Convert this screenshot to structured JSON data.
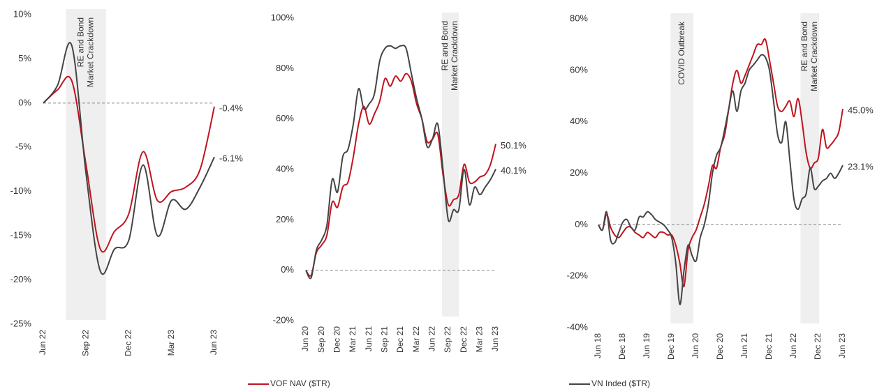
{
  "chart_data": [
    {
      "type": "line",
      "categories": [
        "Jun 22",
        null,
        null,
        "Sep 22",
        null,
        null,
        "Dec 22",
        null,
        null,
        "Mar 23",
        null,
        null,
        "Jun 23"
      ],
      "series": [
        {
          "name": "VOF NAV ($TR)",
          "color": "#c0141e",
          "values": [
            0,
            1.5,
            2.5,
            -7,
            -16.5,
            -14.5,
            -12.5,
            -5.5,
            -11,
            -10,
            -9.5,
            -7.5,
            -0.4
          ],
          "end_label": "-0.4%"
        },
        {
          "name": "VN Inded ($TR)",
          "color": "#444444",
          "values": [
            0,
            2,
            6.5,
            -8,
            -19,
            -16.5,
            -15.5,
            -7,
            -15,
            -11,
            -12,
            -9.5,
            -6.1
          ],
          "end_label": "-6.1%"
        }
      ],
      "ylim": [
        -25,
        10
      ],
      "yticks": [
        {
          "value": -25,
          "label": "-25%"
        },
        {
          "value": -20,
          "label": "-20%"
        },
        {
          "value": -15,
          "label": "-15%"
        },
        {
          "value": -10,
          "label": "-10%"
        },
        {
          "value": -5,
          "label": "-5%"
        },
        {
          "value": 0,
          "label": "0%"
        },
        {
          "value": 5,
          "label": "5%"
        },
        {
          "value": 10,
          "label": "10%"
        }
      ],
      "events": [
        {
          "label": [
            "RE and Bond",
            "Market Crackdown"
          ],
          "start": 1.6,
          "end": 4.4
        }
      ]
    },
    {
      "type": "line",
      "categories": [
        "Jun 20",
        null,
        null,
        "Sep 20",
        null,
        null,
        "Dec 20",
        null,
        null,
        "Mar 21",
        null,
        null,
        "Jun 21",
        null,
        null,
        "Sep 21",
        null,
        null,
        "Dec 21",
        null,
        null,
        "Mar 22",
        null,
        null,
        "Jun 22",
        null,
        null,
        "Sep 22",
        null,
        null,
        "Dec 22",
        null,
        null,
        "Mar 23",
        null,
        null,
        "Jun 23"
      ],
      "series": [
        {
          "name": "VOF NAV ($TR)",
          "color": "#c0141e",
          "values": [
            0,
            -2,
            7,
            10,
            14,
            27,
            25,
            33,
            35,
            45,
            58,
            65,
            58,
            62,
            67,
            76,
            73,
            77,
            75,
            78,
            75,
            66,
            60,
            51,
            52,
            54,
            38,
            26,
            28,
            30,
            42,
            35,
            35,
            37,
            38,
            42,
            50.1
          ],
          "end_label": "50.1%"
        },
        {
          "name": "VN Inded ($TR)",
          "color": "#444444",
          "values": [
            0,
            -3,
            8,
            12,
            18,
            36,
            31,
            45,
            48,
            58,
            72,
            64,
            66,
            70,
            83,
            88,
            89,
            88,
            89,
            88,
            78,
            68,
            60,
            49,
            52,
            58,
            40,
            20,
            24,
            24,
            40,
            26,
            33,
            30,
            33,
            36,
            40.1
          ],
          "end_label": "40.1%"
        }
      ],
      "ylim": [
        -20,
        100
      ],
      "yticks": [
        {
          "value": -20,
          "label": "-20%"
        },
        {
          "value": 0,
          "label": "0%"
        },
        {
          "value": 20,
          "label": "20%"
        },
        {
          "value": 40,
          "label": "40%"
        },
        {
          "value": 60,
          "label": "60%"
        },
        {
          "value": 80,
          "label": "80%"
        },
        {
          "value": 100,
          "label": "100%"
        }
      ],
      "events": [
        {
          "label": [
            "RE and Bond",
            "Market Crackdown"
          ],
          "start": 25.8,
          "end": 29
        }
      ]
    },
    {
      "type": "line",
      "categories": [
        "Jun 18",
        null,
        null,
        null,
        null,
        null,
        "Dec 18",
        null,
        null,
        null,
        null,
        null,
        "Jun 19",
        null,
        null,
        null,
        null,
        null,
        "Dec 19",
        null,
        null,
        null,
        null,
        null,
        "Jun 20",
        null,
        null,
        null,
        null,
        null,
        "Dec 20",
        null,
        null,
        null,
        null,
        null,
        "Jun 21",
        null,
        null,
        null,
        null,
        null,
        "Dec 21",
        null,
        null,
        null,
        null,
        null,
        "Jun 22",
        null,
        null,
        null,
        null,
        null,
        "Dec 22",
        null,
        null,
        null,
        null,
        null,
        "Jun 23"
      ],
      "series": [
        {
          "name": "VOF NAV ($TR)",
          "color": "#c0141e",
          "values": [
            0,
            -2,
            4,
            -1,
            -4,
            -5,
            -3,
            -1,
            -1,
            -3,
            -4,
            -5,
            -3,
            -4,
            -5,
            -3,
            -3,
            -4,
            -4,
            -8,
            -15,
            -24,
            -10,
            -5,
            -2,
            3,
            8,
            15,
            23,
            22,
            30,
            35,
            45,
            55,
            60,
            55,
            58,
            62,
            66,
            70,
            70,
            72,
            64,
            55,
            46,
            44,
            46,
            48,
            42,
            49,
            40,
            28,
            22,
            24,
            26,
            37,
            30,
            31,
            33,
            36,
            45.0
          ],
          "end_label": "45.0%"
        },
        {
          "name": "VN Inded ($TR)",
          "color": "#444444",
          "values": [
            0,
            -2,
            5,
            -6,
            -7,
            -3,
            1,
            2,
            -1,
            -2,
            3,
            3,
            5,
            4,
            2,
            1,
            0,
            -2,
            -5,
            -15,
            -31,
            -18,
            -8,
            -12,
            -14,
            -5,
            0,
            8,
            20,
            27,
            30,
            37,
            45,
            52,
            44,
            52,
            55,
            60,
            62,
            64,
            66,
            65,
            60,
            48,
            35,
            32,
            40,
            25,
            10,
            6,
            10,
            12,
            22,
            14,
            15,
            17,
            18,
            20,
            18,
            20,
            23.1
          ],
          "end_label": "23.1%"
        }
      ],
      "ylim": [
        -40,
        80
      ],
      "yticks": [
        {
          "value": -40,
          "label": "-40%"
        },
        {
          "value": -20,
          "label": "-20%"
        },
        {
          "value": 0,
          "label": "0%"
        },
        {
          "value": 20,
          "label": "20%"
        },
        {
          "value": 40,
          "label": "40%"
        },
        {
          "value": 60,
          "label": "60%"
        },
        {
          "value": 80,
          "label": "80%"
        }
      ],
      "events": [
        {
          "label": [
            "COVID Outbreak"
          ],
          "start": 17.7,
          "end": 23.3
        },
        {
          "label": [
            "RE and Bond",
            "Market Crackdown"
          ],
          "start": 49.6,
          "end": 54.2
        }
      ]
    }
  ]
}
